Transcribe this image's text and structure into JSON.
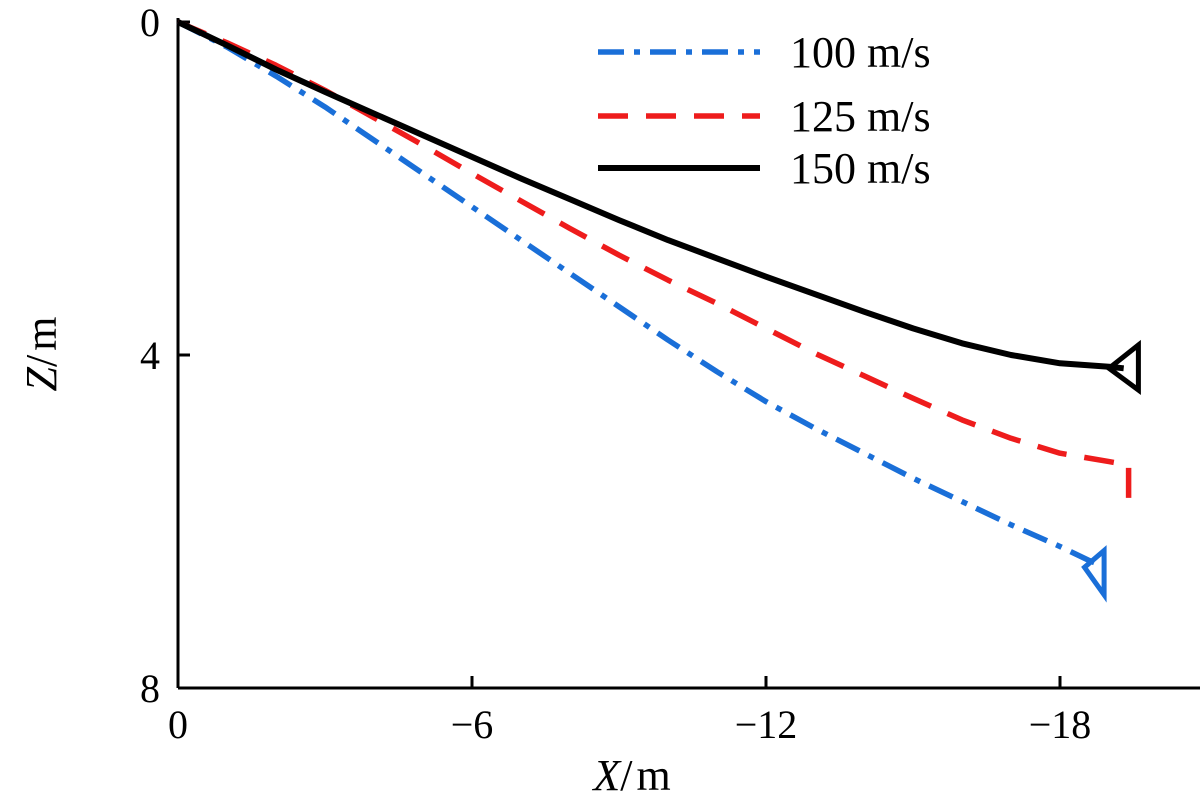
{
  "chart_data": {
    "type": "line",
    "title": "",
    "xlabel_var": "X",
    "ylabel_var": "Z",
    "xlabel_unit": "m",
    "ylabel_unit": "m",
    "xlim": [
      0,
      -20.6
    ],
    "ylim": [
      0,
      8
    ],
    "y_inverted": true,
    "x_direction": "decreasing-to-right",
    "xticks": [
      0,
      -6,
      -12,
      -18
    ],
    "xtick_labels": [
      "0",
      "−6",
      "−12",
      "−18"
    ],
    "yticks": [
      0,
      4,
      8
    ],
    "ytick_labels": [
      "0",
      "4",
      "8"
    ],
    "grid": false,
    "legend_position": "top-right",
    "series": [
      {
        "name": "100 m/s",
        "color": "#1a6fd8",
        "style": "dashdot",
        "x": [
          0,
          -1.0,
          -2.0,
          -3.0,
          -4.0,
          -5.0,
          -6.0,
          -7.0,
          -8.0,
          -9.0,
          -10.0,
          -11.0,
          -12.0,
          -13.0,
          -14.0,
          -15.0,
          -16.0,
          -17.0,
          -18.0,
          -18.6,
          -18.9
        ],
        "y": [
          0,
          0.3,
          0.65,
          1.02,
          1.42,
          1.82,
          2.22,
          2.62,
          3.02,
          3.42,
          3.82,
          4.2,
          4.56,
          4.88,
          5.18,
          5.48,
          5.76,
          6.04,
          6.3,
          6.47,
          6.54
        ],
        "end_marker": {
          "x": [
            -18.5,
            -18.9,
            -18.9
          ],
          "y": [
            6.55,
            6.88,
            6.35
          ]
        }
      },
      {
        "name": "125 m/s",
        "color": "#ee1c1c",
        "style": "dashed",
        "x": [
          0,
          -1.0,
          -2.0,
          -3.0,
          -4.0,
          -5.0,
          -6.0,
          -7.0,
          -8.0,
          -9.0,
          -10.0,
          -11.0,
          -12.0,
          -13.0,
          -14.0,
          -15.0,
          -16.0,
          -17.0,
          -18.0,
          -19.0,
          -19.4,
          -19.4
        ],
        "y": [
          0,
          0.25,
          0.52,
          0.82,
          1.15,
          1.48,
          1.82,
          2.15,
          2.48,
          2.8,
          3.1,
          3.38,
          3.68,
          3.98,
          4.25,
          4.52,
          4.78,
          5.0,
          5.18,
          5.28,
          5.32,
          5.72
        ]
      },
      {
        "name": "150 m/s",
        "color": "#000000",
        "style": "solid",
        "x": [
          0,
          -1.0,
          -2.0,
          -3.0,
          -4.0,
          -5.0,
          -6.0,
          -7.0,
          -8.0,
          -9.0,
          -10.0,
          -11.0,
          -12.0,
          -13.0,
          -14.0,
          -15.0,
          -16.0,
          -17.0,
          -18.0,
          -19.0,
          -19.3
        ],
        "y": [
          0,
          0.28,
          0.57,
          0.84,
          1.1,
          1.36,
          1.62,
          1.88,
          2.13,
          2.38,
          2.62,
          2.84,
          3.06,
          3.27,
          3.48,
          3.68,
          3.86,
          4.0,
          4.1,
          4.14,
          4.16
        ],
        "end_marker": {
          "x": [
            -19.6,
            -19.0,
            -19.6
          ],
          "y": [
            3.88,
            4.16,
            4.42
          ]
        }
      }
    ]
  }
}
